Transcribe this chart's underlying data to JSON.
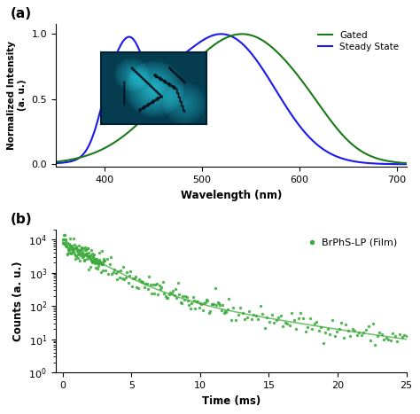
{
  "panel_a": {
    "label": "(a)",
    "xlabel": "Wavelength (nm)",
    "ylabel": "Normalized Intensity\n(a. u.)",
    "xlim": [
      350,
      710
    ],
    "ylim": [
      -0.02,
      1.08
    ],
    "yticks": [
      0.0,
      0.5,
      1.0
    ],
    "xticks": [
      400,
      500,
      600,
      700
    ],
    "gated_color": "#1a7a1a",
    "steady_color": "#1a1aee",
    "legend_labels": [
      "Gated",
      "Steady State"
    ]
  },
  "panel_b": {
    "label": "(b)",
    "xlabel": "Time (ms)",
    "ylabel": "Counts (a. u.)",
    "xlim": [
      -0.5,
      25
    ],
    "ylim_log": [
      1,
      20000.0
    ],
    "xticks": [
      0,
      5,
      10,
      15,
      20,
      25
    ],
    "scatter_color": "#3aaa3a",
    "legend_label": "BrPhS-LP (Film)",
    "decay_A1": 8000,
    "decay_tau1": 1.8,
    "decay_A2": 400,
    "decay_tau2": 6.5,
    "noise_scale": 0.35
  },
  "background_color": "#ffffff"
}
